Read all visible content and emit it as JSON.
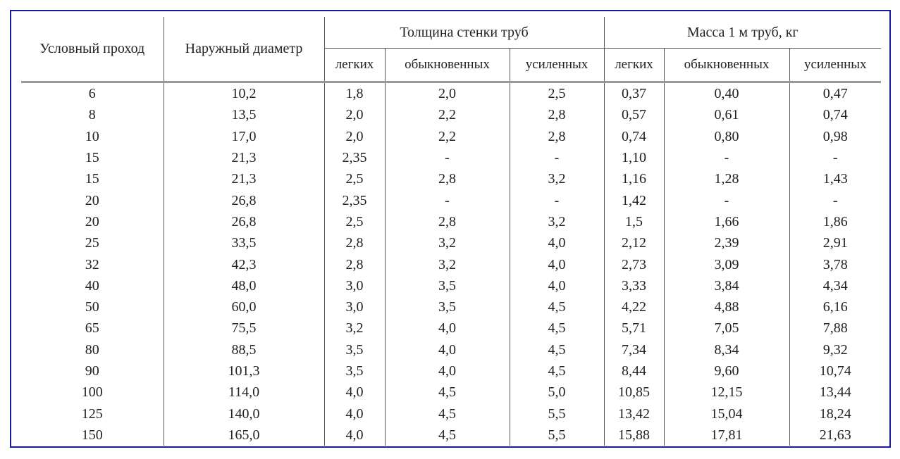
{
  "table": {
    "headers": {
      "nominal": "Условный проход",
      "outer": "Наружный диаметр",
      "wall": "Толщина стенки труб",
      "mass": "Масса 1 м труб, кг",
      "wall_sub": [
        "легких",
        "обыкновенных",
        "усиленных"
      ],
      "mass_sub": [
        "легких",
        "обыкновенных",
        "усиленных"
      ]
    },
    "rows": [
      [
        "6",
        "10,2",
        "1,8",
        "2,0",
        "2,5",
        "0,37",
        "0,40",
        "0,47"
      ],
      [
        "8",
        "13,5",
        "2,0",
        "2,2",
        "2,8",
        "0,57",
        "0,61",
        "0,74"
      ],
      [
        "10",
        "17,0",
        "2,0",
        "2,2",
        "2,8",
        "0,74",
        "0,80",
        "0,98"
      ],
      [
        "15",
        "21,3",
        "2,35",
        "-",
        "-",
        "1,10",
        "-",
        "-"
      ],
      [
        "15",
        "21,3",
        "2,5",
        "2,8",
        "3,2",
        "1,16",
        "1,28",
        "1,43"
      ],
      [
        "20",
        "26,8",
        "2,35",
        "-",
        "-",
        "1,42",
        "-",
        "-"
      ],
      [
        "20",
        "26,8",
        "2,5",
        "2,8",
        "3,2",
        "1,5",
        "1,66",
        "1,86"
      ],
      [
        "25",
        "33,5",
        "2,8",
        "3,2",
        "4,0",
        "2,12",
        "2,39",
        "2,91"
      ],
      [
        "32",
        "42,3",
        "2,8",
        "3,2",
        "4,0",
        "2,73",
        "3,09",
        "3,78"
      ],
      [
        "40",
        "48,0",
        "3,0",
        "3,5",
        "4,0",
        "3,33",
        "3,84",
        "4,34"
      ],
      [
        "50",
        "60,0",
        "3,0",
        "3,5",
        "4,5",
        "4,22",
        "4,88",
        "6,16"
      ],
      [
        "65",
        "75,5",
        "3,2",
        "4,0",
        "4,5",
        "5,71",
        "7,05",
        "7,88"
      ],
      [
        "80",
        "88,5",
        "3,5",
        "4,0",
        "4,5",
        "7,34",
        "8,34",
        "9,32"
      ],
      [
        "90",
        "101,3",
        "3,5",
        "4,0",
        "4,5",
        "8,44",
        "9,60",
        "10,74"
      ],
      [
        "100",
        "114,0",
        "4,0",
        "4,5",
        "5,0",
        "10,85",
        "12,15",
        "13,44"
      ],
      [
        "125",
        "140,0",
        "4,0",
        "4,5",
        "5,5",
        "13,42",
        "15,04",
        "18,24"
      ],
      [
        "150",
        "165,0",
        "4,0",
        "4,5",
        "5,5",
        "15,88",
        "17,81",
        "21,63"
      ]
    ]
  }
}
